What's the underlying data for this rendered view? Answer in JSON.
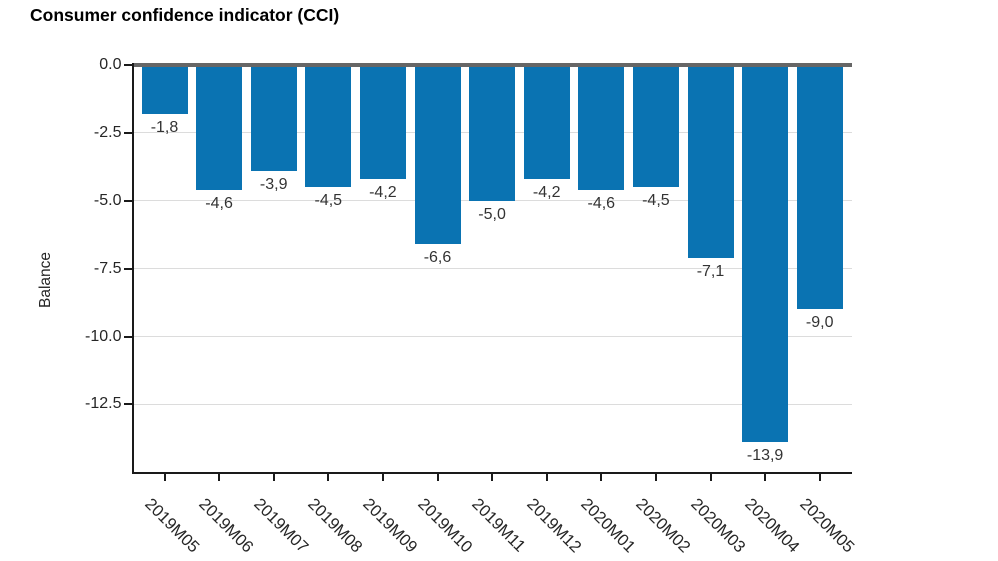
{
  "chart_data": {
    "type": "bar",
    "title": "Consumer confidence indicator (CCI)",
    "ylabel": "Balance",
    "xlabel": "",
    "categories": [
      "2019M05",
      "2019M06",
      "2019M07",
      "2019M08",
      "2019M09",
      "2019M10",
      "2019M11",
      "2019M12",
      "2020M01",
      "2020M02",
      "2020M03",
      "2020M04",
      "2020M05"
    ],
    "values": [
      -1.8,
      -4.6,
      -3.9,
      -4.5,
      -4.2,
      -6.6,
      -5.0,
      -4.2,
      -4.6,
      -4.5,
      -7.1,
      -13.9,
      -9.0
    ],
    "bar_labels": [
      "-1,8",
      "-4,6",
      "-3,9",
      "-4,5",
      "-4,2",
      "-6,6",
      "-5,0",
      "-4,2",
      "-4,6",
      "-4,5",
      "-7,1",
      "-13,9",
      "-9,0"
    ],
    "y_tick_labels": [
      "0.0",
      "-2.5",
      "-5.0",
      "-7.5",
      "-10.0",
      "-12.5"
    ],
    "y_tick_values": [
      0,
      -2.5,
      -5.0,
      -7.5,
      -10.0,
      -12.5
    ],
    "ylim": [
      -15.0,
      0
    ],
    "grid": true,
    "legend_position": "none",
    "colors": {
      "bar": "#0a73b2",
      "grid": "#dcdcdc",
      "zero_line": "#666666",
      "axis": "#1a1a1a",
      "tick_text": "#262626",
      "value_text": "#333333",
      "title_text": "#000000",
      "background": "#ffffff"
    }
  }
}
